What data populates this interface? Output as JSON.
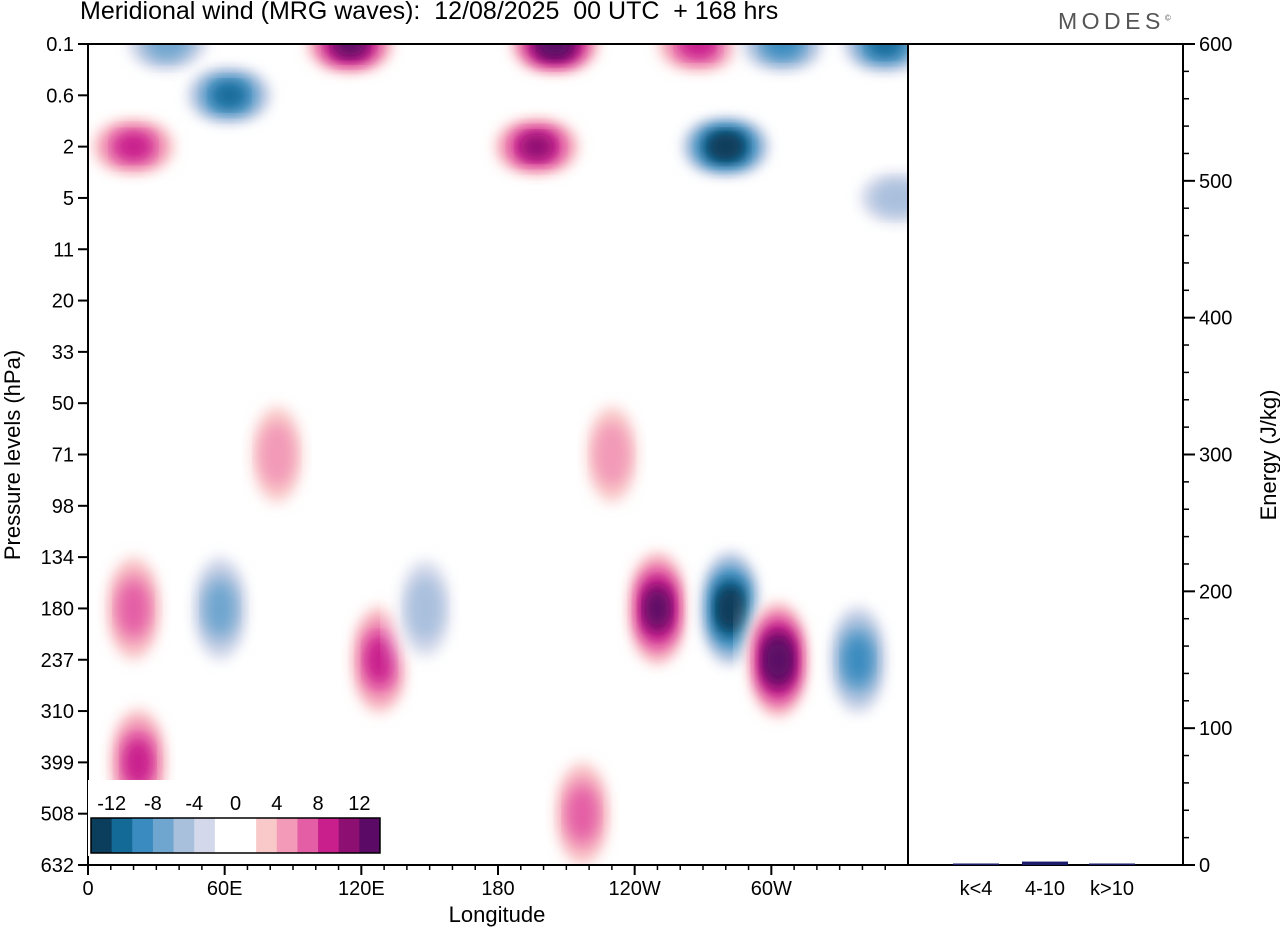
{
  "header": {
    "title": "Meridional wind (MRG waves):  12/08/2025  00 UTC  + 168 hrs",
    "logo": "MODES",
    "logo_mark": "©"
  },
  "colors": {
    "scale": [
      "#0b3d5c",
      "#136a97",
      "#3a8bbf",
      "#6fa6cf",
      "#a9c0dd",
      "#d3d8ea",
      "#ffffff",
      "#ffffff",
      "#f9c8c8",
      "#f29ab8",
      "#e45ea6",
      "#c81f8c",
      "#8e0f72",
      "#5b0a66"
    ],
    "bar": "#1b1c6b"
  },
  "chart_data": [
    {
      "type": "heatmap",
      "title": "Meridional wind (MRG waves)",
      "xlabel": "Longitude",
      "ylabel": "Pressure levels (hPa)",
      "x_ticks": [
        "0",
        "60E",
        "120E",
        "180",
        "120W",
        "60W"
      ],
      "y_ticks": [
        "0.1",
        "0.6",
        "2",
        "5",
        "11",
        "20",
        "33",
        "50",
        "71",
        "98",
        "134",
        "180",
        "237",
        "310",
        "399",
        "508",
        "632"
      ],
      "colorbar_labels": [
        "-12",
        "-8",
        "-4",
        "0",
        "4",
        "8",
        "12"
      ],
      "colorbar_levels": [
        -14,
        -12,
        -10,
        -8,
        -6,
        -4,
        -2,
        0,
        2,
        4,
        6,
        8,
        10,
        12,
        14
      ],
      "features": [
        {
          "lon": 35,
          "level": "0.1",
          "value": -8
        },
        {
          "lon": 62,
          "level": "0.6",
          "value": -12
        },
        {
          "lon": 115,
          "level": "0.1",
          "value": 14
        },
        {
          "lon": 20,
          "level": "2",
          "value": 10
        },
        {
          "lon": 205,
          "level": "0.1",
          "value": 16
        },
        {
          "lon": 197,
          "level": "2",
          "value": 12
        },
        {
          "lon": 268,
          "level": "0.1",
          "value": 10
        },
        {
          "lon": 280,
          "level": "2",
          "value": -16
        },
        {
          "lon": 305,
          "level": "0.1",
          "value": -10
        },
        {
          "lon": 350,
          "level": "0.1",
          "value": -12
        },
        {
          "lon": 355,
          "level": "5",
          "value": -6
        },
        {
          "lon": 20,
          "level": "180",
          "value": 8
        },
        {
          "lon": 22,
          "level": "399",
          "value": 10
        },
        {
          "lon": 58,
          "level": "180",
          "value": -8
        },
        {
          "lon": 128,
          "level": "237",
          "value": 10
        },
        {
          "lon": 148,
          "level": "180",
          "value": -6
        },
        {
          "lon": 250,
          "level": "180",
          "value": 14
        },
        {
          "lon": 282,
          "level": "180",
          "value": -16
        },
        {
          "lon": 303,
          "level": "237",
          "value": 16
        },
        {
          "lon": 338,
          "level": "237",
          "value": -10
        },
        {
          "lon": 230,
          "level": "71",
          "value": 6
        },
        {
          "lon": 83,
          "level": "71",
          "value": 6
        },
        {
          "lon": 217,
          "level": "508",
          "value": 8
        }
      ]
    },
    {
      "type": "bar",
      "ylabel": "Energy (J/kg)",
      "categories": [
        "k<4",
        "4-10",
        "k>10"
      ],
      "values": [
        0.5,
        2.5,
        0.3
      ],
      "ylim": [
        0,
        600
      ],
      "y_ticks": [
        "0",
        "100",
        "200",
        "300",
        "400",
        "500",
        "600"
      ]
    }
  ]
}
